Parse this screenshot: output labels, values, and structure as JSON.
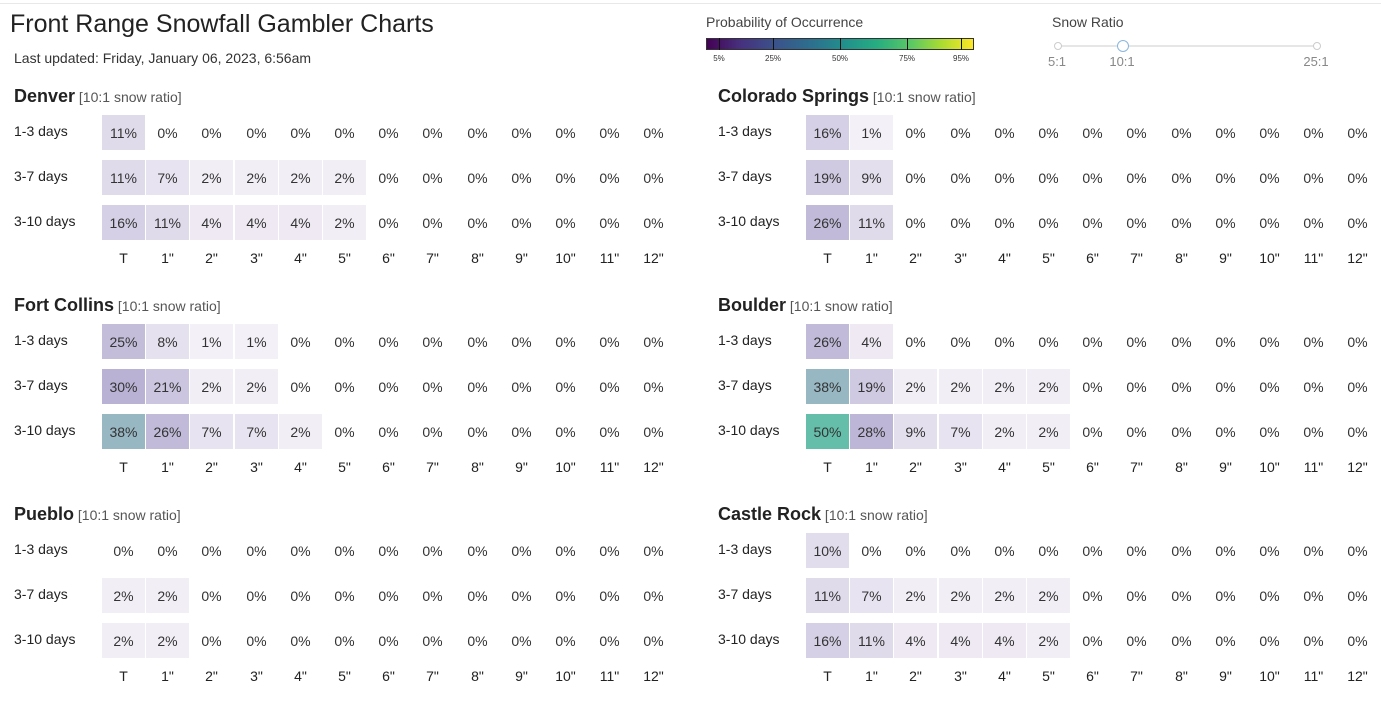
{
  "page": {
    "title": "Front Range Snowfall Gambler Charts",
    "last_updated": "Last updated: Friday, January 06, 2023, 6:56am"
  },
  "legend": {
    "title": "Probability of Occurrence",
    "labels": [
      "5%",
      "25%",
      "50%",
      "75%",
      "95%"
    ],
    "label_values": [
      5,
      25,
      50,
      75,
      95
    ],
    "colormap": "viridis"
  },
  "snow_ratio": {
    "title": "Snow Ratio",
    "min_label": "5:1",
    "value_label": "10:1",
    "max_label": "25:1",
    "min": 5,
    "value": 10,
    "max": 25
  },
  "chart_data": {
    "type": "heatmap",
    "columns": [
      "T",
      "1\"",
      "2\"",
      "3\"",
      "4\"",
      "5\"",
      "6\"",
      "7\"",
      "8\"",
      "9\"",
      "10\"",
      "11\"",
      "12\""
    ],
    "rows": [
      "1-3 days",
      "3-7 days",
      "3-10 days"
    ],
    "units": "%",
    "panels": [
      {
        "city": "Denver",
        "note": "[10:1 snow ratio]",
        "values": [
          [
            11,
            0,
            0,
            0,
            0,
            0,
            0,
            0,
            0,
            0,
            0,
            0,
            0
          ],
          [
            11,
            7,
            2,
            2,
            2,
            2,
            0,
            0,
            0,
            0,
            0,
            0,
            0
          ],
          [
            16,
            11,
            4,
            4,
            4,
            2,
            0,
            0,
            0,
            0,
            0,
            0,
            0
          ]
        ]
      },
      {
        "city": "Colorado Springs",
        "note": "[10:1 snow ratio]",
        "values": [
          [
            16,
            1,
            0,
            0,
            0,
            0,
            0,
            0,
            0,
            0,
            0,
            0,
            0
          ],
          [
            19,
            9,
            0,
            0,
            0,
            0,
            0,
            0,
            0,
            0,
            0,
            0,
            0
          ],
          [
            26,
            11,
            0,
            0,
            0,
            0,
            0,
            0,
            0,
            0,
            0,
            0,
            0
          ]
        ]
      },
      {
        "city": "Fort Collins",
        "note": "[10:1 snow ratio]",
        "values": [
          [
            25,
            8,
            1,
            1,
            0,
            0,
            0,
            0,
            0,
            0,
            0,
            0,
            0
          ],
          [
            30,
            21,
            2,
            2,
            0,
            0,
            0,
            0,
            0,
            0,
            0,
            0,
            0
          ],
          [
            38,
            26,
            7,
            7,
            2,
            0,
            0,
            0,
            0,
            0,
            0,
            0,
            0
          ]
        ]
      },
      {
        "city": "Boulder",
        "note": "[10:1 snow ratio]",
        "values": [
          [
            26,
            4,
            0,
            0,
            0,
            0,
            0,
            0,
            0,
            0,
            0,
            0,
            0
          ],
          [
            38,
            19,
            2,
            2,
            2,
            2,
            0,
            0,
            0,
            0,
            0,
            0,
            0
          ],
          [
            50,
            28,
            9,
            7,
            2,
            2,
            0,
            0,
            0,
            0,
            0,
            0,
            0
          ]
        ]
      },
      {
        "city": "Pueblo",
        "note": "[10:1 snow ratio]",
        "values": [
          [
            0,
            0,
            0,
            0,
            0,
            0,
            0,
            0,
            0,
            0,
            0,
            0,
            0
          ],
          [
            2,
            2,
            0,
            0,
            0,
            0,
            0,
            0,
            0,
            0,
            0,
            0,
            0
          ],
          [
            2,
            2,
            0,
            0,
            0,
            0,
            0,
            0,
            0,
            0,
            0,
            0,
            0
          ]
        ]
      },
      {
        "city": "Castle Rock",
        "note": "[10:1 snow ratio]",
        "values": [
          [
            10,
            0,
            0,
            0,
            0,
            0,
            0,
            0,
            0,
            0,
            0,
            0,
            0
          ],
          [
            11,
            7,
            2,
            2,
            2,
            2,
            0,
            0,
            0,
            0,
            0,
            0,
            0
          ],
          [
            16,
            11,
            4,
            4,
            4,
            2,
            0,
            0,
            0,
            0,
            0,
            0,
            0
          ]
        ]
      }
    ]
  }
}
